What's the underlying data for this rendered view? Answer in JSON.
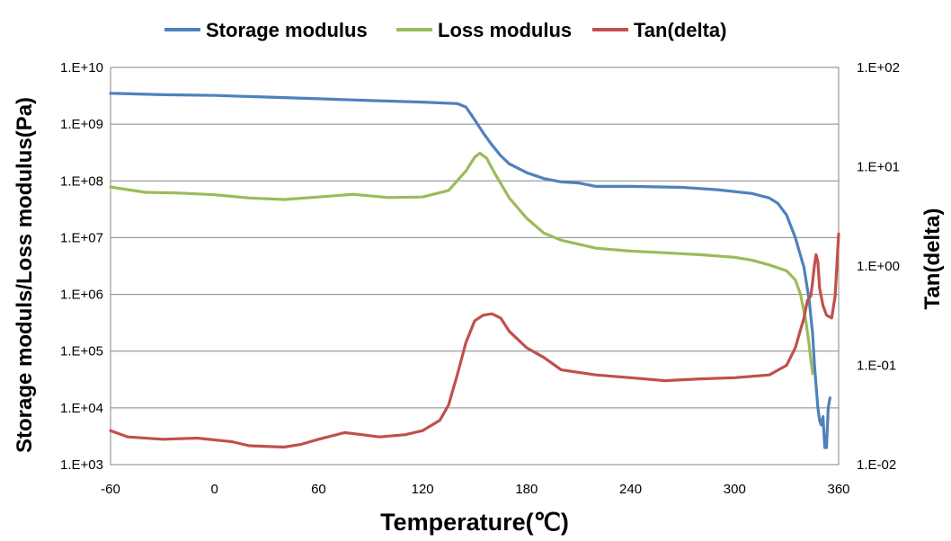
{
  "chart_data": {
    "type": "line",
    "title": "",
    "xlabel": "Temperature(℃)",
    "ylabel_left": "Storage moduls/Loss modulus(Pa)",
    "ylabel_right": "Tan(delta)",
    "xlim": [
      -60,
      360
    ],
    "ylim_left": [
      1000,
      10000000000
    ],
    "ylim_right": [
      0.01,
      100
    ],
    "yscale": "log",
    "grid": "horizontal",
    "legend_position": "top",
    "x_ticks": [
      "-60",
      "0",
      "60",
      "120",
      "180",
      "240",
      "300",
      "360"
    ],
    "y_left_ticks": [
      "1.E+03",
      "1.E+04",
      "1.E+05",
      "1.E+06",
      "1.E+07",
      "1.E+08",
      "1.E+09",
      "1.E+10"
    ],
    "y_right_ticks": [
      "1.E-02",
      "1.E-01",
      "1.E+00",
      "1.E+01",
      "1.E+02"
    ],
    "series": [
      {
        "name": "Storage modulus",
        "color": "#4f81bd",
        "axis": "left",
        "points": [
          [
            -60,
            3500000000
          ],
          [
            -30,
            3300000000
          ],
          [
            0,
            3200000000
          ],
          [
            30,
            3000000000
          ],
          [
            60,
            2800000000
          ],
          [
            90,
            2600000000
          ],
          [
            120,
            2450000000
          ],
          [
            140,
            2300000000
          ],
          [
            145,
            2000000000
          ],
          [
            150,
            1200000000
          ],
          [
            155,
            700000000
          ],
          [
            160,
            430000000
          ],
          [
            165,
            280000000
          ],
          [
            170,
            200000000
          ],
          [
            180,
            140000000
          ],
          [
            190,
            110000000
          ],
          [
            200,
            96000000
          ],
          [
            210,
            92000000
          ],
          [
            220,
            80000000
          ],
          [
            240,
            80000000
          ],
          [
            270,
            77000000
          ],
          [
            290,
            70000000
          ],
          [
            310,
            60000000
          ],
          [
            320,
            50000000
          ],
          [
            325,
            40000000
          ],
          [
            330,
            25000000
          ],
          [
            335,
            10000000
          ],
          [
            340,
            3000000
          ],
          [
            343,
            800000
          ],
          [
            345,
            200000
          ],
          [
            346,
            60000
          ],
          [
            347,
            25000
          ],
          [
            348,
            10000
          ],
          [
            349,
            6000
          ],
          [
            350,
            5000
          ],
          [
            351,
            7000
          ],
          [
            352,
            2000
          ],
          [
            353,
            2000
          ],
          [
            354,
            10000
          ],
          [
            355,
            15000
          ]
        ]
      },
      {
        "name": "Loss modulus",
        "color": "#9bbb59",
        "axis": "left",
        "points": [
          [
            -60,
            78000000
          ],
          [
            -40,
            63000000
          ],
          [
            -20,
            61000000
          ],
          [
            0,
            57000000
          ],
          [
            20,
            50000000
          ],
          [
            40,
            47000000
          ],
          [
            60,
            52000000
          ],
          [
            80,
            58000000
          ],
          [
            100,
            51000000
          ],
          [
            120,
            52000000
          ],
          [
            135,
            68000000
          ],
          [
            145,
            150000000
          ],
          [
            150,
            260000000
          ],
          [
            153,
            310000000
          ],
          [
            157,
            250000000
          ],
          [
            162,
            130000000
          ],
          [
            170,
            50000000
          ],
          [
            180,
            22000000
          ],
          [
            190,
            12000000
          ],
          [
            200,
            9000000
          ],
          [
            220,
            6500000
          ],
          [
            240,
            5800000
          ],
          [
            260,
            5400000
          ],
          [
            280,
            5000000
          ],
          [
            300,
            4500000
          ],
          [
            310,
            4000000
          ],
          [
            320,
            3300000
          ],
          [
            330,
            2600000
          ],
          [
            335,
            1800000
          ],
          [
            338,
            1000000
          ],
          [
            341,
            350000
          ],
          [
            343,
            130000
          ],
          [
            344,
            70000
          ],
          [
            345,
            40000
          ]
        ]
      },
      {
        "name": "Tan(delta)",
        "color": "#c0504d",
        "axis": "right",
        "points": [
          [
            -60,
            0.022
          ],
          [
            -50,
            0.019
          ],
          [
            -30,
            0.018
          ],
          [
            -10,
            0.0185
          ],
          [
            10,
            0.017
          ],
          [
            20,
            0.0155
          ],
          [
            40,
            0.015
          ],
          [
            50,
            0.016
          ],
          [
            60,
            0.018
          ],
          [
            75,
            0.021
          ],
          [
            85,
            0.02
          ],
          [
            95,
            0.019
          ],
          [
            110,
            0.02
          ],
          [
            120,
            0.022
          ],
          [
            130,
            0.028
          ],
          [
            135,
            0.04
          ],
          [
            140,
            0.08
          ],
          [
            145,
            0.17
          ],
          [
            150,
            0.28
          ],
          [
            155,
            0.32
          ],
          [
            160,
            0.33
          ],
          [
            165,
            0.3
          ],
          [
            170,
            0.22
          ],
          [
            180,
            0.15
          ],
          [
            190,
            0.12
          ],
          [
            200,
            0.09
          ],
          [
            220,
            0.08
          ],
          [
            240,
            0.075
          ],
          [
            260,
            0.07
          ],
          [
            280,
            0.073
          ],
          [
            300,
            0.075
          ],
          [
            320,
            0.08
          ],
          [
            330,
            0.1
          ],
          [
            335,
            0.15
          ],
          [
            340,
            0.3
          ],
          [
            342,
            0.45
          ],
          [
            344,
            0.5
          ],
          [
            345,
            0.7
          ],
          [
            346,
            1.0
          ],
          [
            347,
            1.3
          ],
          [
            348,
            1.1
          ],
          [
            349,
            0.6
          ],
          [
            351,
            0.4
          ],
          [
            353,
            0.32
          ],
          [
            356,
            0.3
          ],
          [
            358,
            0.5
          ],
          [
            360,
            2.1
          ]
        ]
      }
    ]
  }
}
